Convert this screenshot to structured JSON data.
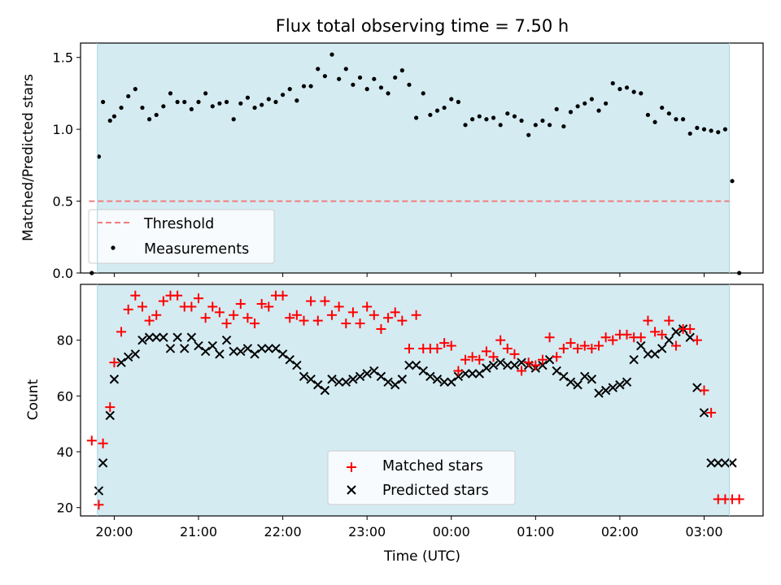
{
  "chart_data": [
    {
      "type": "scatter",
      "title": "Flux total observing time = 7.50 h",
      "xlabel": "",
      "ylabel": "Matched/Predicted stars",
      "ylim": [
        0,
        1.6
      ],
      "yticks": [
        "0.0",
        "0.5",
        "1.0",
        "1.5"
      ],
      "xticks": [
        "20:00",
        "21:00",
        "22:00",
        "23:00",
        "00:00",
        "01:00",
        "02:00",
        "03:00"
      ],
      "x_start": "19:36",
      "x_end": "03:42",
      "x_step_minutes": 5,
      "observing_window": [
        "19:48",
        "03:18"
      ],
      "threshold": 0.5,
      "threshold_range": [
        "19:42",
        "03:20"
      ],
      "legend": [
        "Threshold",
        "Measurements"
      ],
      "legend_position": "lower-left",
      "background_color": "#d4ebf2",
      "threshold_color": "#f07c7c",
      "measurement_color": "#000000",
      "series": [
        {
          "name": "Measurements",
          "x": [
            "19:44",
            "19:49",
            "19:52",
            "19:57",
            "20:00",
            "20:05",
            "20:10",
            "20:15",
            "20:20",
            "20:25",
            "20:30",
            "20:35",
            "20:40",
            "20:45",
            "20:50",
            "20:55",
            "21:00",
            "21:05",
            "21:10",
            "21:15",
            "21:20",
            "21:25",
            "21:30",
            "21:35",
            "21:40",
            "21:45",
            "21:50",
            "21:55",
            "22:00",
            "22:05",
            "22:10",
            "22:15",
            "22:20",
            "22:25",
            "22:30",
            "22:35",
            "22:40",
            "22:45",
            "22:50",
            "22:55",
            "23:00",
            "23:05",
            "23:10",
            "23:15",
            "23:20",
            "23:25",
            "23:30",
            "23:35",
            "23:40",
            "23:45",
            "23:50",
            "23:55",
            "00:00",
            "00:05",
            "00:10",
            "00:15",
            "00:20",
            "00:25",
            "00:30",
            "00:35",
            "00:40",
            "00:45",
            "00:50",
            "00:55",
            "01:00",
            "01:05",
            "01:10",
            "01:15",
            "01:20",
            "01:25",
            "01:30",
            "01:35",
            "01:40",
            "01:45",
            "01:50",
            "01:55",
            "02:00",
            "02:05",
            "02:10",
            "02:15",
            "02:20",
            "02:25",
            "02:30",
            "02:35",
            "02:40",
            "02:45",
            "02:50",
            "02:55",
            "03:00",
            "03:05",
            "03:10",
            "03:15",
            "03:20",
            "03:25"
          ],
          "y": [
            0.0,
            0.81,
            1.19,
            1.06,
            1.09,
            1.15,
            1.23,
            1.28,
            1.15,
            1.07,
            1.1,
            1.16,
            1.25,
            1.19,
            1.19,
            1.14,
            1.19,
            1.25,
            1.16,
            1.18,
            1.19,
            1.07,
            1.18,
            1.22,
            1.15,
            1.17,
            1.21,
            1.19,
            1.24,
            1.28,
            1.2,
            1.3,
            1.3,
            1.42,
            1.37,
            1.52,
            1.35,
            1.42,
            1.31,
            1.36,
            1.28,
            1.35,
            1.29,
            1.25,
            1.36,
            1.41,
            1.31,
            1.08,
            1.25,
            1.1,
            1.13,
            1.15,
            1.21,
            1.19,
            1.03,
            1.07,
            1.09,
            1.07,
            1.08,
            1.03,
            1.11,
            1.09,
            1.06,
            0.96,
            1.03,
            1.06,
            1.03,
            1.14,
            1.02,
            1.12,
            1.16,
            1.18,
            1.21,
            1.13,
            1.18,
            1.32,
            1.28,
            1.29,
            1.26,
            1.25,
            1.1,
            1.05,
            1.15,
            1.11,
            1.07,
            1.07,
            0.97,
            1.01,
            1.0,
            0.99,
            0.98,
            1.0,
            0.64,
            0.0
          ]
        }
      ]
    },
    {
      "type": "scatter",
      "title": "",
      "xlabel": "Time (UTC)",
      "ylabel": "Count",
      "ylim": [
        17,
        100
      ],
      "yticks": [
        "20",
        "40",
        "60",
        "80"
      ],
      "xticks": [
        "20:00",
        "21:00",
        "22:00",
        "23:00",
        "00:00",
        "01:00",
        "02:00",
        "03:00"
      ],
      "x_start": "19:36",
      "x_end": "03:42",
      "x_step_minutes": 5,
      "observing_window": [
        "19:48",
        "03:18"
      ],
      "legend": [
        "Matched stars",
        "Predicted stars"
      ],
      "legend_position": "lower-center",
      "background_color": "#d4ebf2",
      "matched_color": "#ff0000",
      "predicted_color": "#000000",
      "series": [
        {
          "name": "Matched stars",
          "x": [
            "19:44",
            "19:49",
            "19:52",
            "19:57",
            "20:00",
            "20:05",
            "20:10",
            "20:15",
            "20:20",
            "20:25",
            "20:30",
            "20:35",
            "20:40",
            "20:45",
            "20:50",
            "20:55",
            "21:00",
            "21:05",
            "21:10",
            "21:15",
            "21:20",
            "21:25",
            "21:30",
            "21:35",
            "21:40",
            "21:45",
            "21:50",
            "21:55",
            "22:00",
            "22:05",
            "22:10",
            "22:15",
            "22:20",
            "22:25",
            "22:30",
            "22:35",
            "22:40",
            "22:45",
            "22:50",
            "22:55",
            "23:00",
            "23:05",
            "23:10",
            "23:15",
            "23:20",
            "23:25",
            "23:30",
            "23:35",
            "23:40",
            "23:45",
            "23:50",
            "23:55",
            "00:00",
            "00:05",
            "00:10",
            "00:15",
            "00:20",
            "00:25",
            "00:30",
            "00:35",
            "00:40",
            "00:45",
            "00:50",
            "00:55",
            "01:00",
            "01:05",
            "01:10",
            "01:15",
            "01:20",
            "01:25",
            "01:30",
            "01:35",
            "01:40",
            "01:45",
            "01:50",
            "01:55",
            "02:00",
            "02:05",
            "02:10",
            "02:15",
            "02:20",
            "02:25",
            "02:30",
            "02:35",
            "02:40",
            "02:45",
            "02:50",
            "02:55",
            "03:00",
            "03:05",
            "03:10",
            "03:15",
            "03:20",
            "03:25"
          ],
          "y": [
            44,
            21,
            43,
            56,
            72,
            83,
            91,
            96,
            92,
            87,
            89,
            94,
            96,
            96,
            92,
            92,
            95,
            88,
            92,
            90,
            86,
            89,
            93,
            88,
            86,
            93,
            92,
            96,
            96,
            88,
            89,
            87,
            94,
            87,
            94,
            89,
            92,
            86,
            90,
            86,
            92,
            89,
            84,
            88,
            90,
            87,
            77,
            89,
            77,
            77,
            77,
            79,
            78,
            69,
            73,
            74,
            73,
            76,
            74,
            80,
            77,
            75,
            69,
            72,
            71,
            73,
            81,
            74,
            77,
            79,
            77,
            78,
            77,
            78,
            81,
            80,
            82,
            82,
            81,
            81,
            87,
            83,
            82,
            87,
            78,
            84,
            84,
            80,
            62,
            54,
            23,
            23,
            23,
            23
          ]
        },
        {
          "name": "Predicted stars",
          "x": [
            "19:49",
            "19:52",
            "19:57",
            "20:00",
            "20:05",
            "20:10",
            "20:15",
            "20:20",
            "20:25",
            "20:30",
            "20:35",
            "20:40",
            "20:45",
            "20:50",
            "20:55",
            "21:00",
            "21:05",
            "21:10",
            "21:15",
            "21:20",
            "21:25",
            "21:30",
            "21:35",
            "21:40",
            "21:45",
            "21:50",
            "21:55",
            "22:00",
            "22:05",
            "22:10",
            "22:15",
            "22:20",
            "22:25",
            "22:30",
            "22:35",
            "22:40",
            "22:45",
            "22:50",
            "22:55",
            "23:00",
            "23:05",
            "23:10",
            "23:15",
            "23:20",
            "23:25",
            "23:30",
            "23:35",
            "23:40",
            "23:45",
            "23:50",
            "23:55",
            "00:00",
            "00:05",
            "00:10",
            "00:15",
            "00:20",
            "00:25",
            "00:30",
            "00:35",
            "00:40",
            "00:45",
            "00:50",
            "00:55",
            "01:00",
            "01:05",
            "01:10",
            "01:15",
            "01:20",
            "01:25",
            "01:30",
            "01:35",
            "01:40",
            "01:45",
            "01:50",
            "01:55",
            "02:00",
            "02:05",
            "02:10",
            "02:15",
            "02:20",
            "02:25",
            "02:30",
            "02:35",
            "02:40",
            "02:45",
            "02:50",
            "02:55",
            "03:00",
            "03:05",
            "03:10",
            "03:15",
            "03:20"
          ],
          "y": [
            26,
            36,
            53,
            66,
            72,
            74,
            75,
            80,
            81,
            81,
            81,
            77,
            81,
            77,
            81,
            78,
            76,
            78,
            75,
            80,
            76,
            76,
            77,
            75,
            77,
            77,
            77,
            75,
            73,
            71,
            67,
            66,
            64,
            62,
            66,
            65,
            65,
            66,
            67,
            68,
            69,
            67,
            65,
            64,
            66,
            71,
            71,
            69,
            67,
            66,
            65,
            65,
            67,
            68,
            68,
            68,
            70,
            71,
            72,
            71,
            71,
            72,
            71,
            70,
            71,
            73,
            69,
            67,
            65,
            64,
            67,
            66,
            61,
            62,
            63,
            64,
            65,
            73,
            78,
            75,
            75,
            77,
            80,
            83,
            84,
            81,
            63,
            54,
            36,
            36,
            36,
            36
          ]
        }
      ]
    }
  ]
}
